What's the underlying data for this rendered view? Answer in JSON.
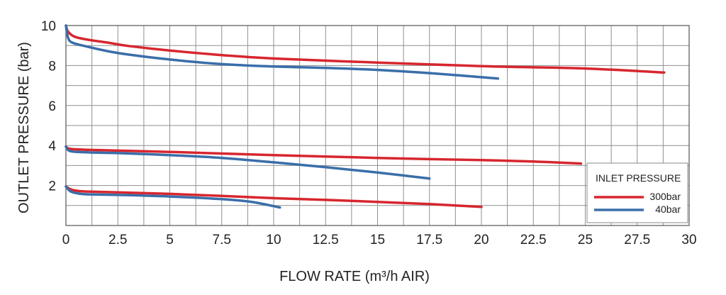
{
  "chart_data": {
    "type": "line",
    "title": "",
    "xlabel": "FLOW RATE (m³/h AIR)",
    "ylabel": "OUTLET PRESSURE (bar)",
    "xlim": [
      0,
      30
    ],
    "ylim": [
      0,
      10
    ],
    "x_ticks": [
      "0",
      "2.5",
      "5",
      "7.5",
      "10",
      "12.5",
      "15",
      "17.5",
      "20",
      "22.5",
      "25",
      "27.5",
      "30"
    ],
    "y_ticks": [
      "2",
      "4",
      "6",
      "8",
      "10"
    ],
    "grid": true,
    "legend": {
      "title": "INLET PRESSURE",
      "position": "bottom-right",
      "entries": [
        {
          "name": "300bar",
          "color": "#d7262e"
        },
        {
          "name": "40bar",
          "color": "#3a6ea9"
        }
      ]
    },
    "series": [
      {
        "name": "300bar",
        "setpoint": 10,
        "color": "#d7262e",
        "points": [
          [
            0,
            10
          ],
          [
            0.1,
            9.7
          ],
          [
            0.4,
            9.45
          ],
          [
            1,
            9.3
          ],
          [
            2,
            9.15
          ],
          [
            3,
            8.98
          ],
          [
            5,
            8.75
          ],
          [
            7.5,
            8.52
          ],
          [
            10,
            8.35
          ],
          [
            15,
            8.15
          ],
          [
            20,
            7.97
          ],
          [
            25,
            7.85
          ],
          [
            28.8,
            7.65
          ]
        ]
      },
      {
        "name": "40bar",
        "setpoint": 10,
        "color": "#3a6ea9",
        "points": [
          [
            0,
            10
          ],
          [
            0.1,
            9.4
          ],
          [
            0.3,
            9.15
          ],
          [
            1,
            8.95
          ],
          [
            2,
            8.72
          ],
          [
            3,
            8.55
          ],
          [
            5,
            8.3
          ],
          [
            7.5,
            8.07
          ],
          [
            10,
            7.95
          ],
          [
            12.5,
            7.88
          ],
          [
            15,
            7.78
          ],
          [
            17.5,
            7.62
          ],
          [
            20.8,
            7.35
          ]
        ]
      },
      {
        "name": "300bar",
        "setpoint": 4,
        "color": "#d7262e",
        "points": [
          [
            0,
            3.95
          ],
          [
            0.3,
            3.82
          ],
          [
            2,
            3.76
          ],
          [
            5,
            3.68
          ],
          [
            7.5,
            3.6
          ],
          [
            10,
            3.52
          ],
          [
            12.5,
            3.45
          ],
          [
            15,
            3.38
          ],
          [
            17.5,
            3.32
          ],
          [
            20,
            3.27
          ],
          [
            22.5,
            3.2
          ],
          [
            24.8,
            3.1
          ]
        ]
      },
      {
        "name": "40bar",
        "setpoint": 4,
        "color": "#3a6ea9",
        "points": [
          [
            0,
            3.95
          ],
          [
            0.2,
            3.72
          ],
          [
            1,
            3.66
          ],
          [
            2.5,
            3.62
          ],
          [
            5,
            3.52
          ],
          [
            7.5,
            3.38
          ],
          [
            10,
            3.16
          ],
          [
            12.5,
            2.92
          ],
          [
            15,
            2.65
          ],
          [
            17.5,
            2.35
          ]
        ]
      },
      {
        "name": "300bar",
        "setpoint": 2,
        "color": "#d7262e",
        "points": [
          [
            0,
            1.95
          ],
          [
            0.2,
            1.82
          ],
          [
            0.5,
            1.74
          ],
          [
            1,
            1.7
          ],
          [
            2.5,
            1.66
          ],
          [
            5,
            1.58
          ],
          [
            7.5,
            1.48
          ],
          [
            10,
            1.37
          ],
          [
            12.5,
            1.28
          ],
          [
            15,
            1.18
          ],
          [
            17.5,
            1.07
          ],
          [
            20,
            0.93
          ]
        ]
      },
      {
        "name": "40bar",
        "setpoint": 2,
        "color": "#3a6ea9",
        "points": [
          [
            0,
            1.95
          ],
          [
            0.2,
            1.72
          ],
          [
            0.5,
            1.62
          ],
          [
            1,
            1.56
          ],
          [
            2.5,
            1.53
          ],
          [
            5,
            1.45
          ],
          [
            7.5,
            1.32
          ],
          [
            9,
            1.17
          ],
          [
            10.3,
            0.9
          ]
        ]
      }
    ]
  }
}
